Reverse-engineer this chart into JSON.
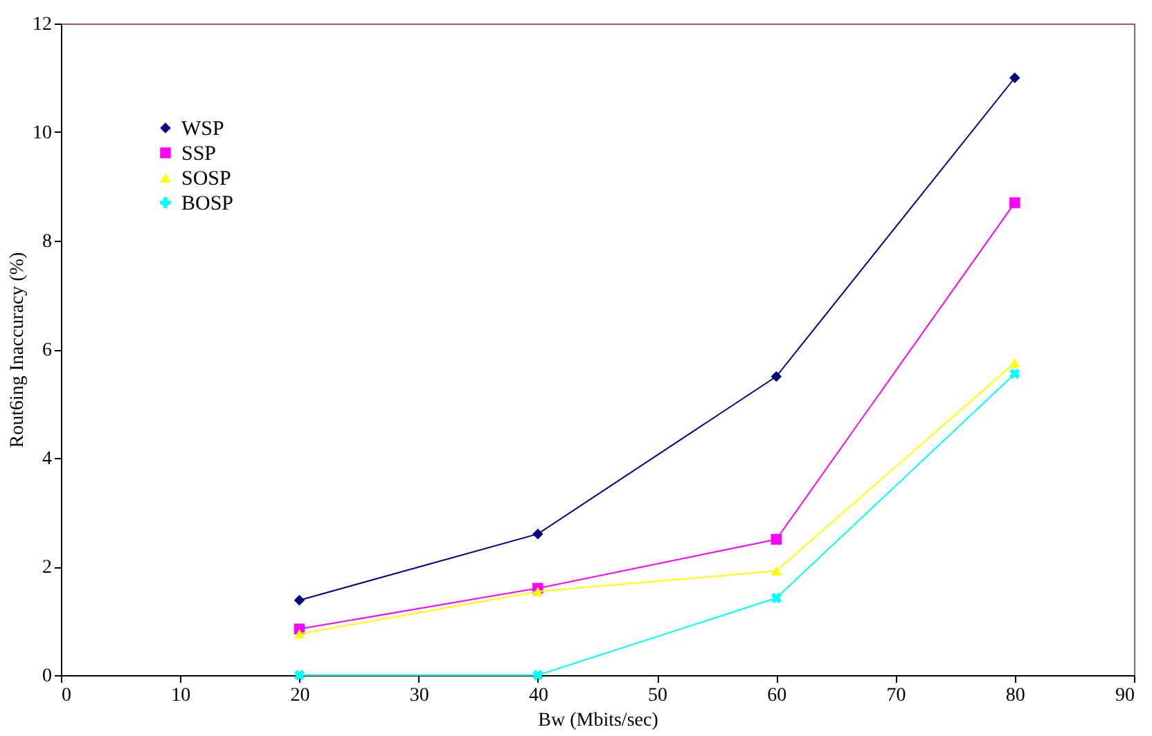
{
  "chart_data": {
    "type": "line",
    "xlabel": "Bw (Mbits/sec)",
    "ylabel": "Rout6ing Inaccuracy (%)",
    "x": [
      20,
      40,
      60,
      80
    ],
    "series": [
      {
        "name": "WSP",
        "color": "#000080",
        "marker": "diamond",
        "values": [
          1.38,
          2.6,
          5.5,
          11.0
        ]
      },
      {
        "name": "SSP",
        "color": "#ff00ff",
        "marker": "square",
        "values": [
          0.85,
          1.6,
          2.5,
          8.7
        ]
      },
      {
        "name": "SOSP",
        "color": "#ffff00",
        "marker": "triangle",
        "values": [
          0.76,
          1.54,
          1.92,
          5.75
        ]
      },
      {
        "name": "BOSP",
        "color": "#00ffff",
        "marker": "cross",
        "values": [
          0,
          0,
          1.42,
          5.55
        ]
      }
    ],
    "xlim": [
      0,
      90
    ],
    "xticks": [
      0,
      10,
      20,
      30,
      40,
      50,
      60,
      70,
      80,
      90
    ],
    "ylim": [
      0,
      12
    ],
    "yticks": [
      0,
      2,
      4,
      6,
      8,
      10,
      12
    ],
    "grid": false,
    "legend": "top left",
    "line_style": "solid"
  }
}
